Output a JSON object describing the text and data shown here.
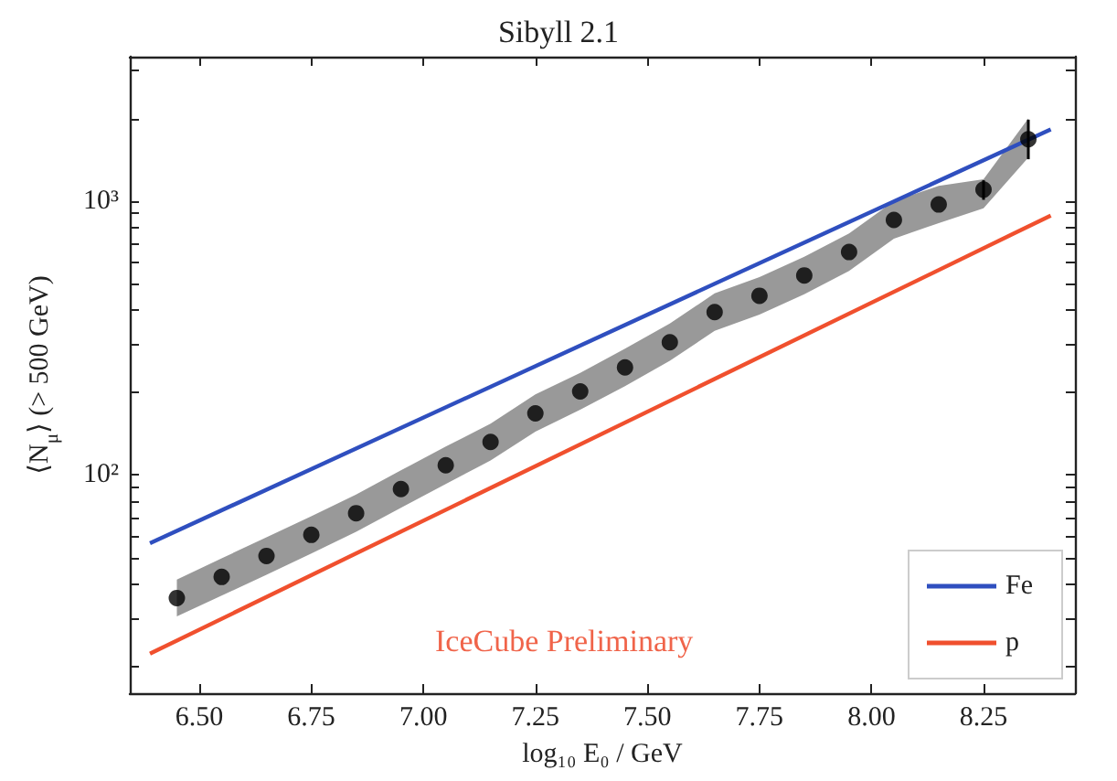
{
  "chart_data": {
    "type": "scatter",
    "title": "Sibyll 2.1",
    "xlabel": "log₁₀ E₀ / GeV",
    "ylabel": "⟨N$_{μ}$⟩ (> 500 GeV)",
    "annotations": [
      "IceCube Preliminary"
    ],
    "log": "y",
    "grid": false,
    "legend": "bottom right",
    "xlim": [
      6.345,
      8.454
    ],
    "ylim": [
      16,
      3360
    ],
    "xticks": [
      {
        "value": 6.5,
        "label": "6.50"
      },
      {
        "value": 6.75,
        "label": "6.75"
      },
      {
        "value": 7.0,
        "label": "7.00"
      },
      {
        "value": 7.25,
        "label": "7.25"
      },
      {
        "value": 7.5,
        "label": "7.50"
      },
      {
        "value": 7.75,
        "label": "7.75"
      },
      {
        "value": 8.0,
        "label": "8.00"
      },
      {
        "value": 8.25,
        "label": "8.25"
      }
    ],
    "yticks": [
      {
        "value": 20,
        "label": null
      },
      {
        "value": 30,
        "label": null
      },
      {
        "value": 40,
        "label": null
      },
      {
        "value": 50,
        "label": null
      },
      {
        "value": 60,
        "label": null
      },
      {
        "value": 70,
        "label": null
      },
      {
        "value": 80,
        "label": null
      },
      {
        "value": 90,
        "label": null
      },
      {
        "value": 100,
        "label": "10²"
      },
      {
        "value": 200,
        "label": null
      },
      {
        "value": 300,
        "label": null
      },
      {
        "value": 400,
        "label": null
      },
      {
        "value": 500,
        "label": null
      },
      {
        "value": 600,
        "label": null
      },
      {
        "value": 700,
        "label": null
      },
      {
        "value": 800,
        "label": null
      },
      {
        "value": 900,
        "label": null
      },
      {
        "value": 1000,
        "label": "10³"
      },
      {
        "value": 2000,
        "label": null
      },
      {
        "value": 3000,
        "label": null
      }
    ],
    "series": [
      {
        "marker": "circle",
        "color": "#000000",
        "x": [
          6.45,
          6.55,
          6.65,
          6.75,
          6.85,
          6.95,
          7.05,
          7.15,
          7.25,
          7.35,
          7.45,
          7.55,
          7.65,
          7.75,
          7.85,
          7.95,
          8.05,
          8.15,
          8.25,
          8.35
        ],
        "values": [
          35.6,
          42.5,
          50.7,
          60.5,
          72.6,
          88.9,
          108.6,
          132,
          168,
          202,
          247,
          305,
          393,
          451,
          535,
          651,
          853,
          971,
          1100,
          1679
        ],
        "lower": [
          30.5,
          36.3,
          43.3,
          51.7,
          62.1,
          76,
          92.8,
          113,
          144,
          173,
          211,
          261,
          336,
          385,
          457,
          556,
          729,
          830,
          940,
          1440
        ],
        "upper": [
          41.6,
          49.7,
          59.3,
          70.8,
          84.9,
          104,
          127,
          154,
          197,
          236,
          289,
          357,
          460,
          528,
          626,
          762,
          998,
          1136,
          1200,
          2000
        ],
        "errors": [
          null,
          null,
          null,
          null,
          null,
          null,
          null,
          null,
          null,
          null,
          null,
          null,
          null,
          null,
          null,
          null,
          null,
          null,
          [
            1010,
            1190
          ],
          [
            1420,
            1980
          ]
        ]
      },
      {
        "type": "line",
        "name": "Fe",
        "color": "#2f4fbf",
        "x": [
          6.39,
          8.4
        ],
        "values": [
          56.4,
          1825
        ]
      },
      {
        "type": "line",
        "name": "p",
        "color": "#f0502e",
        "x": [
          6.39,
          8.4
        ],
        "values": [
          22.3,
          885
        ]
      }
    ]
  }
}
